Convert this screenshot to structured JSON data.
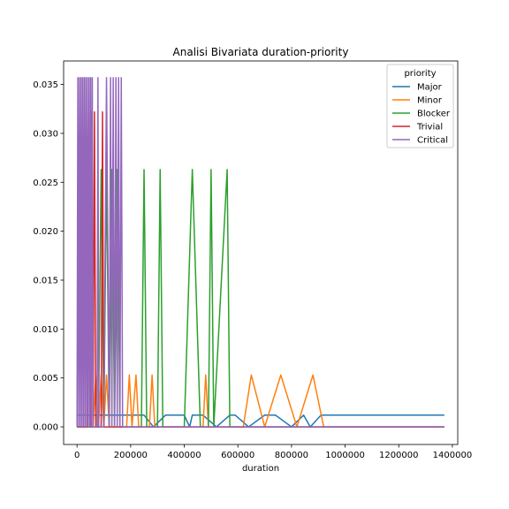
{
  "chart_data": {
    "type": "line",
    "title": "Analisi Bivariata duration-priority",
    "xlabel": "duration",
    "ylabel": "",
    "xlim": [
      -50000,
      1420000
    ],
    "ylim": [
      -0.0018,
      0.0374
    ],
    "x_ticks": [
      0,
      200000,
      400000,
      600000,
      800000,
      1000000,
      1200000,
      1400000
    ],
    "x_tick_labels": [
      "0",
      "200000",
      "400000",
      "600000",
      "800000",
      "1000000",
      "1200000",
      "1400000"
    ],
    "y_ticks": [
      0.0,
      0.005,
      0.01,
      0.015,
      0.02,
      0.025,
      0.03,
      0.035
    ],
    "y_tick_labels": [
      "0.000",
      "0.005",
      "0.010",
      "0.015",
      "0.020",
      "0.025",
      "0.030",
      "0.035"
    ],
    "grid": false,
    "legend": {
      "title": "priority",
      "placement": "top-right"
    },
    "series": [
      {
        "name": "Major",
        "color": "#1f77b4",
        "x": [
          0,
          110000,
          250000,
          285000,
          330000,
          400000,
          420000,
          430000,
          470000,
          520000,
          570000,
          590000,
          640000,
          700000,
          740000,
          800000,
          845000,
          870000,
          910000,
          1370000
        ],
        "y": [
          0.0012,
          0.0012,
          0.0012,
          0.0,
          0.0012,
          0.0012,
          0.0,
          0.0012,
          0.0012,
          0.0,
          0.0012,
          0.0012,
          0.0,
          0.0012,
          0.0012,
          0.0,
          0.0012,
          0.0,
          0.0012,
          0.0012
        ]
      },
      {
        "name": "Minor",
        "color": "#ff7f0e",
        "x": [
          0,
          60000,
          70000,
          80000,
          90000,
          100000,
          110000,
          120000,
          140000,
          185000,
          195000,
          205000,
          220000,
          230000,
          240000,
          270000,
          280000,
          290000,
          300000,
          470000,
          480000,
          490000,
          620000,
          650000,
          700000,
          760000,
          820000,
          880000,
          920000,
          1370000
        ],
        "y": [
          0.0,
          0.0,
          0.0053,
          0.0,
          0.0053,
          0.0,
          0.0053,
          0.0,
          0.0,
          0.0,
          0.0053,
          0.0,
          0.0053,
          0.0,
          0.0,
          0.0,
          0.0053,
          0.0,
          0.0,
          0.0,
          0.0053,
          0.0,
          0.0,
          0.0053,
          0.0,
          0.0053,
          0.0,
          0.0053,
          0.0,
          0.0
        ]
      },
      {
        "name": "Blocker",
        "color": "#2ca02c",
        "x": [
          0,
          80000,
          90000,
          100000,
          110000,
          120000,
          130000,
          140000,
          150000,
          160000,
          170000,
          240000,
          250000,
          260000,
          300000,
          310000,
          320000,
          400000,
          430000,
          460000,
          490000,
          500000,
          510000,
          560000,
          570000,
          1370000
        ],
        "y": [
          0.0,
          0.0,
          0.0263,
          0.0,
          0.0263,
          0.0,
          0.0263,
          0.0,
          0.0263,
          0.0,
          0.0,
          0.0,
          0.0263,
          0.0,
          0.0,
          0.0263,
          0.0,
          0.0,
          0.0263,
          0.0,
          0.0,
          0.0263,
          0.0,
          0.0263,
          0.0,
          0.0
        ]
      },
      {
        "name": "Trivial",
        "color": "#d62728",
        "x": [
          0,
          40000,
          45000,
          50000,
          55000,
          60000,
          65000,
          70000,
          90000,
          95000,
          100000,
          1370000
        ],
        "y": [
          0.0,
          0.0,
          0.0322,
          0.0,
          0.0322,
          0.0,
          0.0322,
          0.0,
          0.0,
          0.0322,
          0.0,
          0.0
        ]
      },
      {
        "name": "Critical",
        "color": "#9467bd",
        "x": [
          0,
          3000,
          6000,
          9000,
          12000,
          15000,
          18000,
          21000,
          24000,
          27000,
          30000,
          33000,
          36000,
          39000,
          42000,
          45000,
          48000,
          51000,
          54000,
          57000,
          60000,
          75000,
          78000,
          81000,
          100000,
          110000,
          120000,
          125000,
          130000,
          135000,
          140000,
          145000,
          150000,
          155000,
          160000,
          165000,
          170000,
          1370000
        ],
        "y": [
          0.0,
          0.0357,
          0.0,
          0.0357,
          0.0,
          0.0357,
          0.0,
          0.0357,
          0.0,
          0.0357,
          0.0,
          0.0357,
          0.0,
          0.0357,
          0.0,
          0.0357,
          0.0,
          0.0357,
          0.0,
          0.0357,
          0.0,
          0.0,
          0.0357,
          0.0,
          0.0,
          0.0357,
          0.0,
          0.0357,
          0.0,
          0.0357,
          0.0,
          0.0357,
          0.0,
          0.0357,
          0.0,
          0.0357,
          0.0,
          0.0
        ]
      }
    ]
  }
}
